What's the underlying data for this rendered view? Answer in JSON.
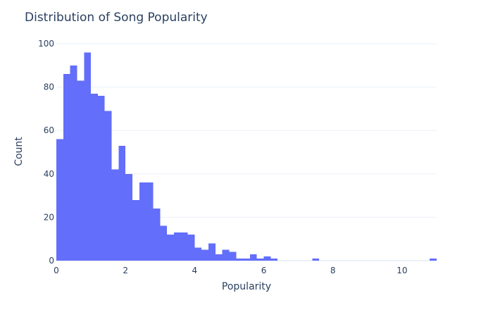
{
  "chart_data": {
    "type": "bar",
    "title": "Distribution of Song Popularity",
    "xlabel": "Popularity",
    "ylabel": "Count",
    "xlim": [
      0,
      11
    ],
    "ylim": [
      0,
      100
    ],
    "bin_width": 0.2,
    "x_ticks": [
      0,
      2,
      4,
      6,
      8,
      10
    ],
    "y_ticks": [
      0,
      20,
      40,
      60,
      80,
      100
    ],
    "bar_color": "#636efa",
    "grid": true,
    "bins": [
      {
        "x0": 0.0,
        "x1": 0.2,
        "count": 56
      },
      {
        "x0": 0.2,
        "x1": 0.4,
        "count": 86
      },
      {
        "x0": 0.4,
        "x1": 0.6,
        "count": 90
      },
      {
        "x0": 0.6,
        "x1": 0.8,
        "count": 83
      },
      {
        "x0": 0.8,
        "x1": 1.0,
        "count": 96
      },
      {
        "x0": 1.0,
        "x1": 1.2,
        "count": 77
      },
      {
        "x0": 1.2,
        "x1": 1.4,
        "count": 76
      },
      {
        "x0": 1.4,
        "x1": 1.6,
        "count": 69
      },
      {
        "x0": 1.6,
        "x1": 1.8,
        "count": 42
      },
      {
        "x0": 1.8,
        "x1": 2.0,
        "count": 53
      },
      {
        "x0": 2.0,
        "x1": 2.2,
        "count": 40
      },
      {
        "x0": 2.2,
        "x1": 2.4,
        "count": 28
      },
      {
        "x0": 2.4,
        "x1": 2.6,
        "count": 36
      },
      {
        "x0": 2.6,
        "x1": 2.8,
        "count": 36
      },
      {
        "x0": 2.8,
        "x1": 3.0,
        "count": 24
      },
      {
        "x0": 3.0,
        "x1": 3.2,
        "count": 16
      },
      {
        "x0": 3.2,
        "x1": 3.4,
        "count": 12
      },
      {
        "x0": 3.4,
        "x1": 3.6,
        "count": 13
      },
      {
        "x0": 3.6,
        "x1": 3.8,
        "count": 13
      },
      {
        "x0": 3.8,
        "x1": 4.0,
        "count": 12
      },
      {
        "x0": 4.0,
        "x1": 4.2,
        "count": 6
      },
      {
        "x0": 4.2,
        "x1": 4.4,
        "count": 5
      },
      {
        "x0": 4.4,
        "x1": 4.6,
        "count": 8
      },
      {
        "x0": 4.6,
        "x1": 4.8,
        "count": 3
      },
      {
        "x0": 4.8,
        "x1": 5.0,
        "count": 5
      },
      {
        "x0": 5.0,
        "x1": 5.2,
        "count": 4
      },
      {
        "x0": 5.2,
        "x1": 5.4,
        "count": 1
      },
      {
        "x0": 5.4,
        "x1": 5.6,
        "count": 1
      },
      {
        "x0": 5.6,
        "x1": 5.8,
        "count": 3
      },
      {
        "x0": 5.8,
        "x1": 6.0,
        "count": 1
      },
      {
        "x0": 6.0,
        "x1": 6.2,
        "count": 2
      },
      {
        "x0": 6.2,
        "x1": 6.4,
        "count": 1
      },
      {
        "x0": 7.4,
        "x1": 7.6,
        "count": 1
      },
      {
        "x0": 10.8,
        "x1": 11.0,
        "count": 1
      }
    ]
  }
}
